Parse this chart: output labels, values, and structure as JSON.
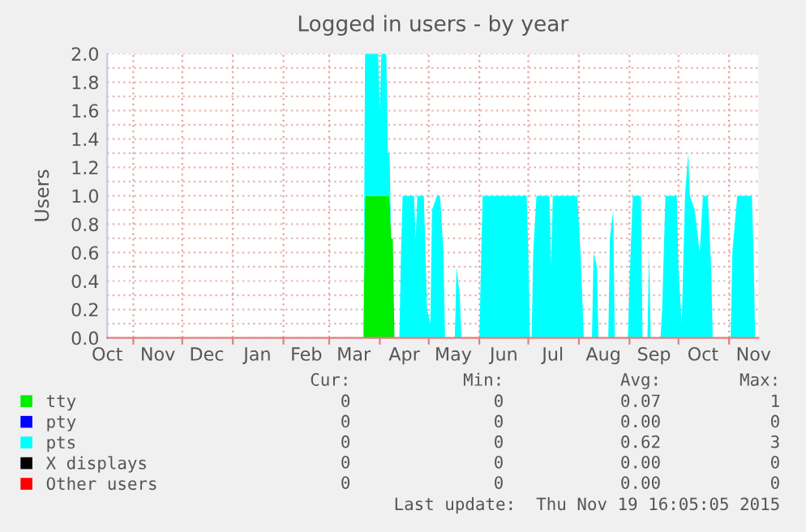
{
  "chart_data": {
    "type": "area",
    "stacked": true,
    "title": "Logged in users - by year",
    "ylabel": "Users",
    "x": [
      "2015-03-22",
      "2015-03-23",
      "2015-03-31",
      "2015-04-01",
      "2015-04-02",
      "2015-04-05",
      "2015-04-06",
      "2015-04-07",
      "2015-04-08",
      "2015-04-09",
      "2015-04-10",
      "2015-04-13",
      "2015-04-14",
      "2015-04-15",
      "2015-04-22",
      "2015-04-23",
      "2015-04-24",
      "2015-04-28",
      "2015-04-29",
      "2015-04-30",
      "2015-05-02",
      "2015-05-03",
      "2015-05-06",
      "2015-05-08",
      "2015-05-10",
      "2015-05-11",
      "2015-05-17",
      "2015-05-18",
      "2015-05-20",
      "2015-05-21",
      "2015-06-01",
      "2015-06-02",
      "2015-06-03",
      "2015-06-30",
      "2015-07-01",
      "2015-07-02",
      "2015-07-03",
      "2015-07-04",
      "2015-07-06",
      "2015-07-14",
      "2015-07-15",
      "2015-07-16",
      "2015-07-31",
      "2015-08-02",
      "2015-08-03",
      "2015-08-04",
      "2015-08-09",
      "2015-08-10",
      "2015-08-12",
      "2015-08-13",
      "2015-08-19",
      "2015-08-20",
      "2015-08-22",
      "2015-08-23",
      "2015-08-31",
      "2015-09-01",
      "2015-09-03",
      "2015-09-08",
      "2015-09-09",
      "2015-09-12",
      "2015-09-13",
      "2015-09-14",
      "2015-09-20",
      "2015-09-21",
      "2015-09-23",
      "2015-09-30",
      "2015-10-01",
      "2015-10-03",
      "2015-10-05",
      "2015-10-07",
      "2015-10-08",
      "2015-10-11",
      "2015-10-14",
      "2015-10-16",
      "2015-10-19",
      "2015-10-21",
      "2015-10-22",
      "2015-11-02",
      "2015-11-03",
      "2015-11-06",
      "2015-11-15",
      "2015-11-16",
      "2015-11-17"
    ],
    "series": [
      {
        "name": "tty",
        "color": "#00ee00",
        "values": [
          0,
          1,
          1,
          1,
          1,
          1,
          1,
          1,
          0.7,
          0.7,
          0,
          0,
          0,
          0,
          0,
          0,
          0,
          0,
          0,
          0,
          0,
          0,
          0,
          0,
          0,
          0,
          0,
          0,
          0,
          0,
          0,
          0,
          0,
          0,
          0,
          0,
          0,
          0,
          0,
          0,
          0,
          0,
          0,
          0,
          0,
          0,
          0,
          0,
          0,
          0,
          0,
          0,
          0,
          0,
          0,
          0,
          0,
          0,
          0,
          0,
          0,
          0,
          0,
          0,
          0,
          0,
          0,
          0,
          0,
          0,
          0,
          0,
          0,
          0,
          0,
          0,
          0,
          0,
          0,
          0,
          0,
          0,
          0
        ]
      },
      {
        "name": "pty",
        "color": "#0000ff",
        "values": [
          null,
          null,
          null,
          null,
          null,
          null,
          null,
          null,
          null,
          null,
          null,
          null,
          null,
          null,
          null,
          null,
          null,
          null,
          null,
          null,
          null,
          null,
          null,
          null,
          null,
          null,
          null,
          null,
          null,
          null,
          null,
          null,
          null,
          null,
          null,
          null,
          null,
          null,
          null,
          null,
          null,
          null,
          null,
          null,
          null,
          null,
          null,
          null,
          null,
          null,
          null,
          null,
          null,
          null,
          null,
          null,
          null,
          null,
          null,
          null,
          null,
          null,
          null,
          null,
          null,
          null,
          null,
          null,
          null,
          null,
          null,
          null,
          null,
          null,
          null,
          null,
          null,
          null,
          null,
          null,
          null,
          null,
          null
        ]
      },
      {
        "name": "pts",
        "color": "#00ffff",
        "values": [
          0,
          1,
          1,
          0.6,
          1,
          1,
          0.3,
          0.3,
          0,
          0,
          0,
          0,
          0.6,
          1,
          1,
          0.7,
          1,
          1,
          0.6,
          0.2,
          0.1,
          0.9,
          1,
          1,
          0.6,
          0,
          0,
          0.5,
          0.3,
          0,
          0,
          0.5,
          1,
          1,
          0.6,
          0,
          0,
          0.6,
          1,
          1,
          0.5,
          1,
          1,
          0.6,
          0.3,
          0,
          0,
          0.6,
          0.5,
          0,
          0,
          0.7,
          0.9,
          0,
          0,
          0.4,
          1,
          1,
          0,
          0,
          0.6,
          0,
          0,
          0.2,
          1,
          1,
          0.5,
          0.1,
          1,
          1.3,
          1,
          0.9,
          0.6,
          1,
          1,
          0.5,
          0,
          0,
          0.6,
          1,
          1,
          0.6,
          0
        ]
      },
      {
        "name": "X displays",
        "color": "#000000",
        "values": [
          null,
          null,
          null,
          null,
          null,
          null,
          null,
          null,
          null,
          null,
          null,
          null,
          null,
          null,
          null,
          null,
          null,
          null,
          null,
          null,
          null,
          null,
          null,
          null,
          null,
          null,
          null,
          null,
          null,
          null,
          null,
          null,
          null,
          null,
          null,
          null,
          null,
          null,
          null,
          null,
          null,
          null,
          null,
          null,
          null,
          null,
          null,
          null,
          null,
          null,
          null,
          null,
          null,
          null,
          null,
          null,
          null,
          null,
          null,
          null,
          null,
          null,
          null,
          null,
          null,
          null,
          null,
          null,
          null,
          null,
          null,
          null,
          null,
          null,
          null,
          null,
          null,
          null,
          null,
          null,
          null,
          null,
          null
        ]
      },
      {
        "name": "Other users",
        "color": "#ff0000",
        "values": [
          null,
          null,
          null,
          null,
          null,
          null,
          null,
          null,
          null,
          null,
          null,
          null,
          null,
          null,
          null,
          null,
          null,
          null,
          null,
          null,
          null,
          null,
          null,
          null,
          null,
          null,
          null,
          null,
          null,
          null,
          null,
          null,
          null,
          null,
          null,
          null,
          null,
          null,
          null,
          null,
          null,
          null,
          null,
          null,
          null,
          null,
          null,
          null,
          null,
          null,
          null,
          null,
          null,
          null,
          null,
          null,
          null,
          null,
          null,
          null,
          null,
          null,
          null,
          null,
          null,
          null,
          null,
          null,
          null,
          null,
          null,
          null,
          null,
          null,
          null,
          null,
          null,
          null,
          null,
          null,
          null,
          null,
          null
        ]
      }
    ],
    "xlim": [
      "2014-10-16",
      "2015-11-19"
    ],
    "xticks": [
      {
        "value": "2014-11-01",
        "label": null
      },
      {
        "value": "2014-12-01",
        "label": null
      },
      {
        "value": "2015-01-01",
        "label": null
      },
      {
        "value": "2015-02-01",
        "label": null
      },
      {
        "value": "2015-03-01",
        "label": null
      },
      {
        "value": "2015-04-01",
        "label": null
      },
      {
        "value": "2015-05-01",
        "label": null
      },
      {
        "value": "2015-06-01",
        "label": null
      },
      {
        "value": "2015-07-01",
        "label": null
      },
      {
        "value": "2015-08-01",
        "label": null
      },
      {
        "value": "2015-09-01",
        "label": null
      },
      {
        "value": "2015-10-01",
        "label": null
      },
      {
        "value": "2015-11-01",
        "label": null
      },
      {
        "value": "2014-10-16",
        "label": "Oct"
      },
      {
        "value": "2014-11-16",
        "label": "Nov"
      },
      {
        "value": "2014-12-16",
        "label": "Dec"
      },
      {
        "value": "2015-01-16",
        "label": "Jan"
      },
      {
        "value": "2015-02-15",
        "label": "Feb"
      },
      {
        "value": "2015-03-16",
        "label": "Mar"
      },
      {
        "value": "2015-04-16",
        "label": "Apr"
      },
      {
        "value": "2015-05-16",
        "label": "May"
      },
      {
        "value": "2015-06-16",
        "label": "Jun"
      },
      {
        "value": "2015-07-16",
        "label": "Jul"
      },
      {
        "value": "2015-08-16",
        "label": "Aug"
      },
      {
        "value": "2015-09-16",
        "label": "Sep"
      },
      {
        "value": "2015-10-16",
        "label": "Oct"
      },
      {
        "value": "2015-11-16",
        "label": "Nov"
      }
    ],
    "ylim": [
      0,
      2.0
    ],
    "yticks": [
      {
        "value": 0,
        "label": "0.0"
      },
      {
        "value": 0.1,
        "label": null
      },
      {
        "value": 0.2,
        "label": "0.2"
      },
      {
        "value": 0.3,
        "label": null
      },
      {
        "value": 0.4,
        "label": "0.4"
      },
      {
        "value": 0.5,
        "label": null
      },
      {
        "value": 0.6,
        "label": "0.6"
      },
      {
        "value": 0.7,
        "label": null
      },
      {
        "value": 0.8,
        "label": "0.8"
      },
      {
        "value": 0.9,
        "label": null
      },
      {
        "value": 1.0,
        "label": "1.0"
      },
      {
        "value": 1.1,
        "label": null
      },
      {
        "value": 1.2,
        "label": "1.2"
      },
      {
        "value": 1.3,
        "label": null
      },
      {
        "value": 1.4,
        "label": "1.4"
      },
      {
        "value": 1.5,
        "label": null
      },
      {
        "value": 1.6,
        "label": "1.6"
      },
      {
        "value": 1.7,
        "label": null
      },
      {
        "value": 1.8,
        "label": "1.8"
      },
      {
        "value": 1.9,
        "label": null
      },
      {
        "value": 2.0,
        "label": "2.0"
      }
    ],
    "grid": true,
    "legend": "bottom",
    "annotations": [
      "Cur:",
      "Min:",
      "Avg:",
      "Max:",
      "0",
      "0",
      "0.07",
      "1",
      "0",
      "0",
      "0.00",
      "0",
      "0",
      "0",
      "0.62",
      "3",
      "0",
      "0",
      "0.00",
      "0",
      "0",
      "0",
      "0.00",
      "0",
      "Last update:  Thu Nov 19 16:05:05 2015"
    ]
  }
}
